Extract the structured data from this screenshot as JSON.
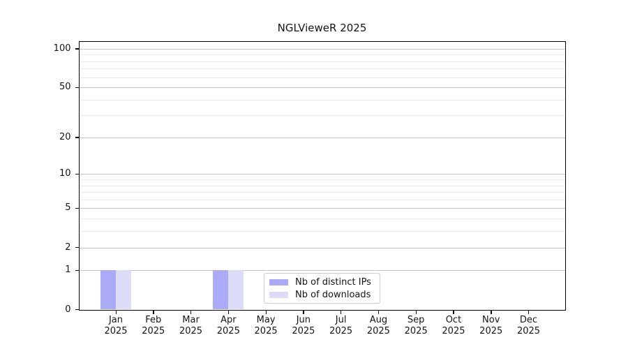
{
  "chart_data": {
    "type": "bar",
    "title": "NGLVieweR 2025",
    "categories": [
      "Jan 2025",
      "Feb 2025",
      "Mar 2025",
      "Apr 2025",
      "May 2025",
      "Jun 2025",
      "Jul 2025",
      "Aug 2025",
      "Sep 2025",
      "Oct 2025",
      "Nov 2025",
      "Dec 2025"
    ],
    "series": [
      {
        "name": "Nb of distinct IPs",
        "color": "#aaaaf7",
        "values": [
          1,
          0,
          0,
          1,
          0,
          0,
          0,
          0,
          0,
          0,
          0,
          0
        ]
      },
      {
        "name": "Nb of downloads",
        "color": "#dcdcf9",
        "values": [
          1,
          0,
          0,
          1,
          0,
          0,
          0,
          0,
          0,
          0,
          0,
          0
        ]
      }
    ],
    "xlabel": "",
    "ylabel": "",
    "yscale": "log1p",
    "ylim": [
      0,
      113
    ],
    "yticks": [
      0,
      1,
      2,
      5,
      10,
      20,
      50,
      100
    ],
    "minor_gridlines": [
      3,
      4,
      6,
      7,
      8,
      9,
      30,
      40,
      60,
      70,
      80,
      90
    ],
    "grid": "horizontal",
    "legend_position": "lower-center-inside"
  },
  "colors": {
    "major_grid": "#c4c4c4",
    "minor_grid": "#ececec",
    "axis": "#000000",
    "text": "#141414",
    "legend_border": "#cccccc",
    "background": "#ffffff"
  }
}
